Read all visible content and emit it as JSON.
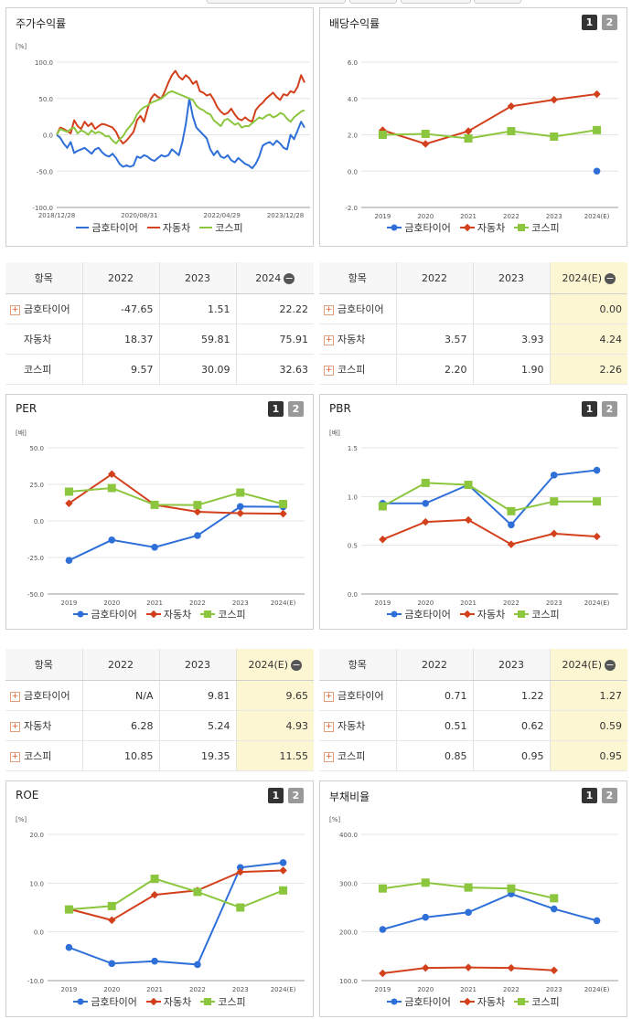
{
  "legend": {
    "s1": "금호타이어",
    "s2": "자동차",
    "s3": "코스피"
  },
  "colors": {
    "s1": "#2f6fd8",
    "s2": "#d2401c",
    "s3": "#8cc63f"
  },
  "panels": {
    "stock": {
      "title": "주가수익률",
      "unit": "[%]"
    },
    "dividend": {
      "title": "배당수익률",
      "unit": ""
    },
    "per": {
      "title": "PER",
      "unit": "[배]"
    },
    "pbr": {
      "title": "PBR",
      "unit": "[배]"
    },
    "roe": {
      "title": "ROE",
      "unit": "[%]"
    },
    "debt": {
      "title": "부채비율",
      "unit": "[%]"
    }
  },
  "pager": {
    "p1": "1",
    "p2": "2"
  },
  "tables": {
    "stock": {
      "headers": [
        "항목",
        "2022",
        "2023",
        "2024"
      ],
      "rows": [
        {
          "name": "금호타이어",
          "v": [
            "-47.65",
            "1.51",
            "22.22"
          ],
          "expand": true
        },
        {
          "name": "자동차",
          "v": [
            "18.37",
            "59.81",
            "75.91"
          ],
          "expand": false
        },
        {
          "name": "코스피",
          "v": [
            "9.57",
            "30.09",
            "32.63"
          ],
          "expand": false
        }
      ]
    },
    "dividend": {
      "headers": [
        "항목",
        "2022",
        "2023",
        "2024(E)"
      ],
      "rows": [
        {
          "name": "금호타이어",
          "v": [
            "",
            "",
            "0.00"
          ],
          "expand": true
        },
        {
          "name": "자동차",
          "v": [
            "3.57",
            "3.93",
            "4.24"
          ],
          "expand": true
        },
        {
          "name": "코스피",
          "v": [
            "2.20",
            "1.90",
            "2.26"
          ],
          "expand": true
        }
      ]
    },
    "per": {
      "headers": [
        "항목",
        "2022",
        "2023",
        "2024(E)"
      ],
      "rows": [
        {
          "name": "금호타이어",
          "v": [
            "N/A",
            "9.81",
            "9.65"
          ],
          "expand": true
        },
        {
          "name": "자동차",
          "v": [
            "6.28",
            "5.24",
            "4.93"
          ],
          "expand": true
        },
        {
          "name": "코스피",
          "v": [
            "10.85",
            "19.35",
            "11.55"
          ],
          "expand": true
        }
      ]
    },
    "pbr": {
      "headers": [
        "항목",
        "2022",
        "2023",
        "2024(E)"
      ],
      "rows": [
        {
          "name": "금호타이어",
          "v": [
            "0.71",
            "1.22",
            "1.27"
          ],
          "expand": true
        },
        {
          "name": "자동차",
          "v": [
            "0.51",
            "0.62",
            "0.59"
          ],
          "expand": true
        },
        {
          "name": "코스피",
          "v": [
            "0.85",
            "0.95",
            "0.95"
          ],
          "expand": true
        }
      ]
    }
  },
  "chart_data": [
    {
      "id": "stock",
      "type": "line",
      "title": "주가수익률",
      "xlabels": [
        "2018/12/28",
        "2020/08/31",
        "2022/04/29",
        "2023/12/28"
      ],
      "yticks": [
        "100.0",
        "50.0",
        "0.0",
        "-50.0",
        "-100.0"
      ],
      "ylim": [
        -100,
        100
      ],
      "series": [
        {
          "name": "금호타이어",
          "values": [
            0,
            -4,
            -12,
            -18,
            -10,
            -25,
            -22,
            -20,
            -18,
            -22,
            -26,
            -20,
            -18,
            -24,
            -28,
            -30,
            -26,
            -32,
            -40,
            -44,
            -42,
            -44,
            -42,
            -30,
            -32,
            -28,
            -30,
            -34,
            -36,
            -32,
            -28,
            -30,
            -28,
            -20,
            -24,
            -28,
            -10,
            15,
            50,
            25,
            10,
            5,
            0,
            -5,
            -20,
            -28,
            -22,
            -30,
            -32,
            -28,
            -35,
            -38,
            -32,
            -36,
            -40,
            -42,
            -46,
            -40,
            -30,
            -15,
            -12,
            -10,
            -14,
            -8,
            -12,
            -18,
            -20,
            0,
            -6,
            6,
            18,
            10
          ]
        },
        {
          "name": "자동차",
          "values": [
            0,
            10,
            8,
            5,
            2,
            20,
            12,
            8,
            18,
            12,
            16,
            8,
            12,
            15,
            14,
            12,
            10,
            4,
            -6,
            -12,
            -8,
            -2,
            4,
            20,
            26,
            18,
            35,
            50,
            56,
            52,
            50,
            60,
            72,
            82,
            88,
            80,
            76,
            82,
            78,
            70,
            74,
            60,
            58,
            54,
            56,
            48,
            38,
            32,
            28,
            30,
            36,
            28,
            22,
            20,
            24,
            20,
            18,
            34,
            40,
            44,
            50,
            54,
            58,
            52,
            48,
            56,
            54,
            60,
            58,
            66,
            82,
            72
          ]
        },
        {
          "name": "코스피",
          "values": [
            0,
            8,
            6,
            4,
            8,
            10,
            2,
            6,
            4,
            0,
            6,
            2,
            4,
            2,
            -2,
            -2,
            -8,
            -12,
            -6,
            -2,
            6,
            12,
            18,
            28,
            34,
            38,
            40,
            44,
            46,
            48,
            50,
            54,
            58,
            60,
            58,
            56,
            54,
            52,
            50,
            48,
            40,
            36,
            34,
            30,
            28,
            20,
            16,
            12,
            20,
            22,
            18,
            14,
            16,
            10,
            12,
            12,
            16,
            20,
            24,
            22,
            26,
            28,
            24,
            26,
            30,
            28,
            22,
            18,
            24,
            28,
            32,
            34
          ]
        }
      ]
    },
    {
      "id": "dividend",
      "type": "line",
      "title": "배당수익률",
      "categories": [
        "2019",
        "2020",
        "2021",
        "2022",
        "2023",
        "2024(E)"
      ],
      "yticks": [
        "6.0",
        "4.0",
        "2.0",
        "0.0",
        "-2.0"
      ],
      "ylim": [
        -2,
        6
      ],
      "series": [
        {
          "name": "금호타이어",
          "values": [
            null,
            null,
            null,
            null,
            null,
            0.0
          ]
        },
        {
          "name": "자동차",
          "values": [
            2.25,
            1.5,
            2.2,
            3.57,
            3.93,
            4.24
          ]
        },
        {
          "name": "코스피",
          "values": [
            2.0,
            2.05,
            1.8,
            2.2,
            1.9,
            2.26
          ]
        }
      ]
    },
    {
      "id": "per",
      "type": "line",
      "title": "PER",
      "categories": [
        "2019",
        "2020",
        "2021",
        "2022",
        "2023",
        "2024(E)"
      ],
      "yticks": [
        "50.0",
        "25.0",
        "0.0",
        "-25.0",
        "-50.0"
      ],
      "ylim": [
        -50,
        50
      ],
      "series": [
        {
          "name": "금호타이어",
          "values": [
            -27,
            -13,
            -18,
            -10,
            9.81,
            9.65
          ]
        },
        {
          "name": "자동차",
          "values": [
            12,
            32,
            11,
            6.28,
            5.24,
            4.93
          ]
        },
        {
          "name": "코스피",
          "values": [
            20,
            22.5,
            11,
            10.85,
            19.35,
            11.55
          ]
        }
      ]
    },
    {
      "id": "pbr",
      "type": "line",
      "title": "PBR",
      "categories": [
        "2019",
        "2020",
        "2021",
        "2022",
        "2023",
        "2024(E)"
      ],
      "yticks": [
        "1.5",
        "1.0",
        "0.5",
        "0.0"
      ],
      "ylim": [
        0,
        1.5
      ],
      "series": [
        {
          "name": "금호타이어",
          "values": [
            0.93,
            0.93,
            1.12,
            0.71,
            1.22,
            1.27
          ]
        },
        {
          "name": "자동차",
          "values": [
            0.56,
            0.74,
            0.76,
            0.51,
            0.62,
            0.59
          ]
        },
        {
          "name": "코스피",
          "values": [
            0.9,
            1.14,
            1.12,
            0.85,
            0.95,
            0.95
          ]
        }
      ]
    },
    {
      "id": "roe",
      "type": "line",
      "title": "ROE",
      "categories": [
        "2019",
        "2020",
        "2021",
        "2022",
        "2023",
        "2024(E)"
      ],
      "yticks": [
        "20.0",
        "10.0",
        "0.0",
        "-10.0"
      ],
      "ylim": [
        -10,
        20
      ],
      "series": [
        {
          "name": "금호타이어",
          "values": [
            -3.2,
            -6.5,
            -6.0,
            -6.7,
            13.2,
            14.2
          ]
        },
        {
          "name": "자동차",
          "values": [
            4.7,
            2.4,
            7.6,
            8.5,
            12.3,
            12.6
          ]
        },
        {
          "name": "코스피",
          "values": [
            4.6,
            5.3,
            10.9,
            8.2,
            5.0,
            8.5
          ]
        }
      ]
    },
    {
      "id": "debt",
      "type": "line",
      "title": "부채비율",
      "categories": [
        "2019",
        "2020",
        "2021",
        "2022",
        "2023",
        "2024(E)"
      ],
      "yticks": [
        "400.0",
        "300.0",
        "200.0",
        "100.0"
      ],
      "ylim": [
        100,
        400
      ],
      "series": [
        {
          "name": "금호타이어",
          "values": [
            205,
            230,
            240,
            278,
            247,
            223
          ]
        },
        {
          "name": "자동차",
          "values": [
            115,
            126,
            127,
            126,
            121,
            null
          ]
        },
        {
          "name": "코스피",
          "values": [
            289,
            301,
            291,
            289,
            269,
            null
          ]
        }
      ]
    }
  ]
}
